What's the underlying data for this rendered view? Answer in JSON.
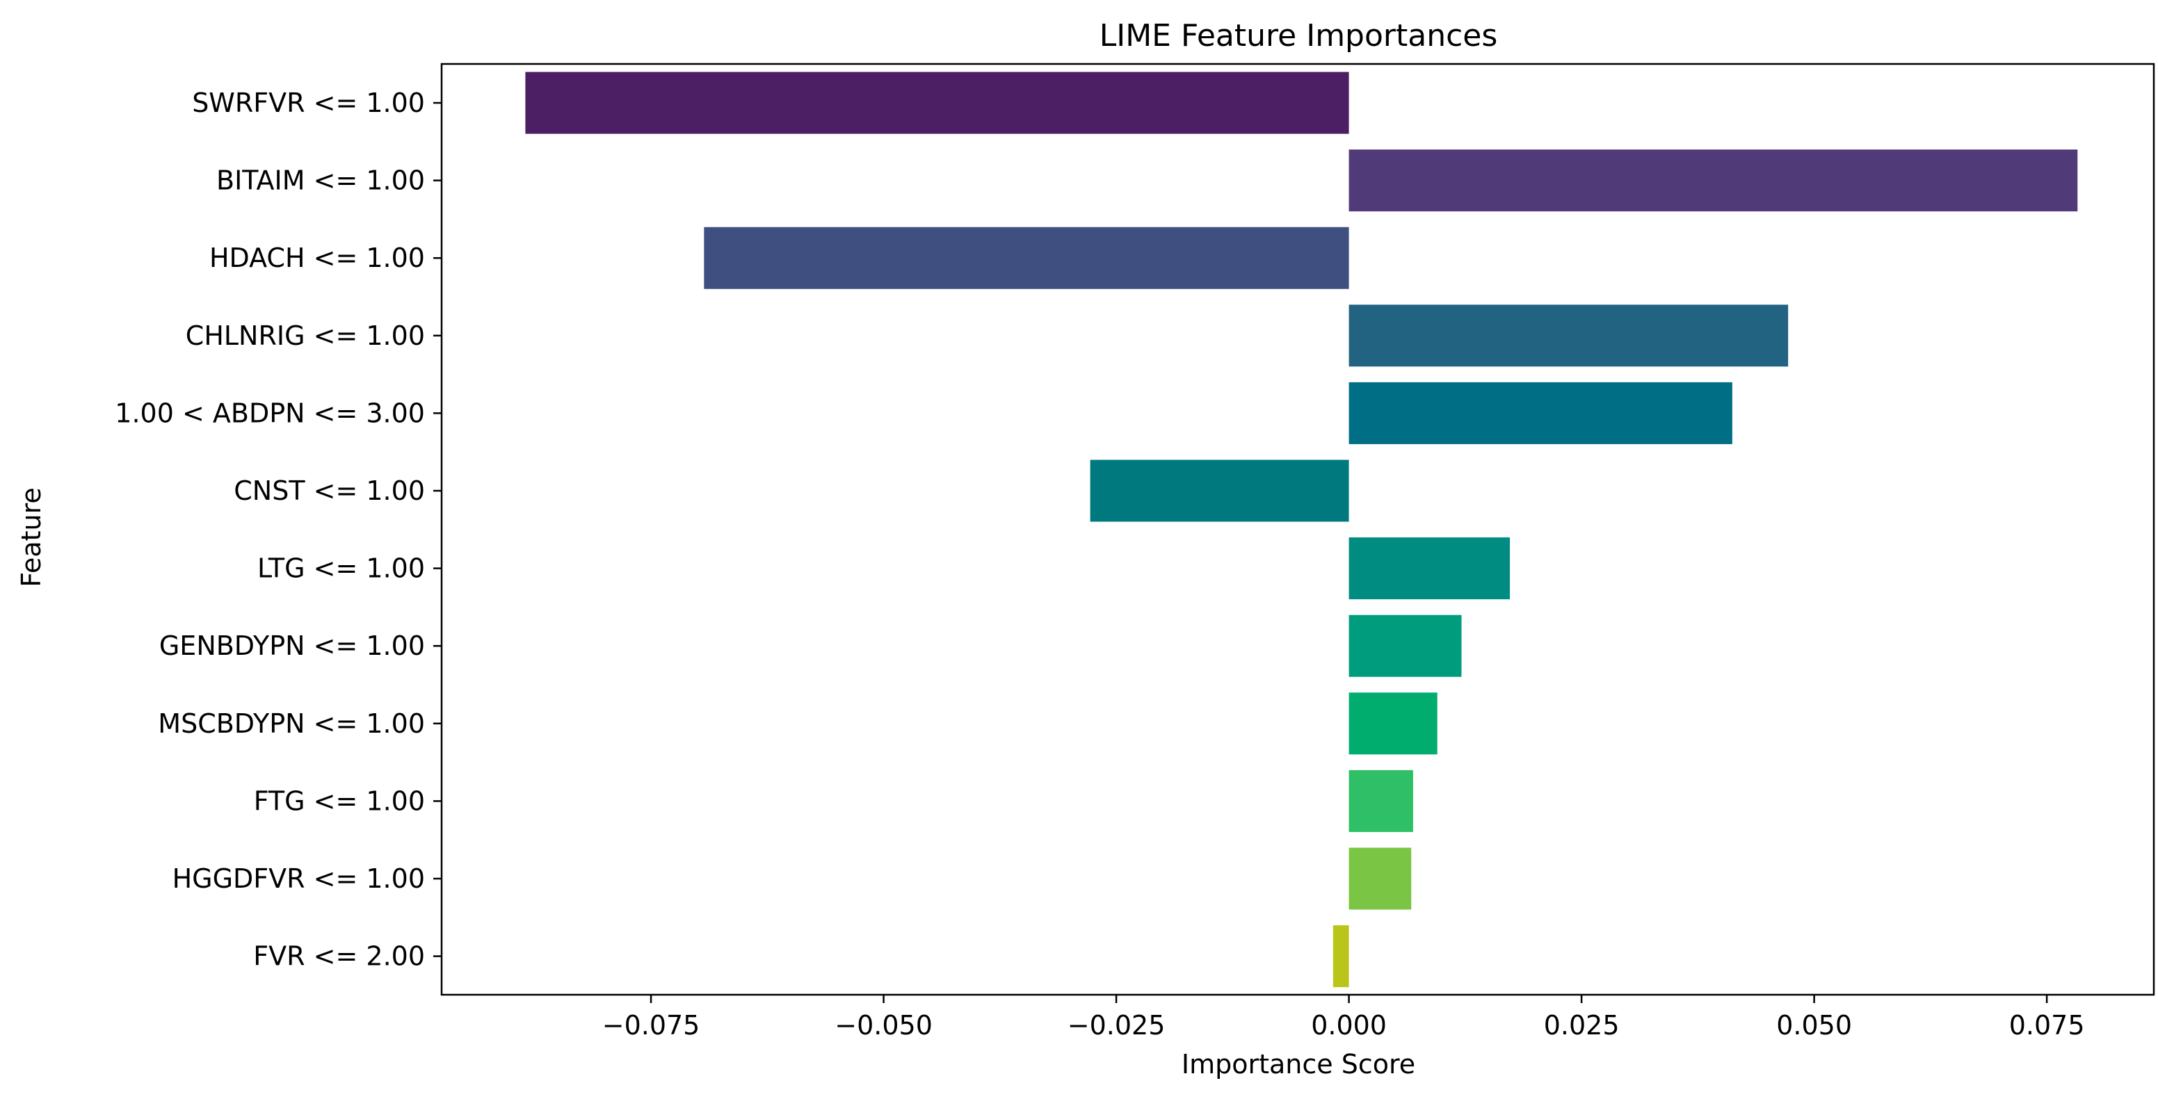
{
  "chart_data": {
    "type": "bar",
    "orientation": "horizontal",
    "title": "LIME Feature Importances",
    "xlabel": "Importance Score",
    "ylabel": "Feature",
    "xlim": [
      -0.0975,
      0.0865
    ],
    "xticks": [
      -0.075,
      -0.05,
      -0.025,
      0.0,
      0.025,
      0.05,
      0.075
    ],
    "xtick_labels": [
      "−0.075",
      "−0.050",
      "−0.025",
      "0.000",
      "0.025",
      "0.050",
      "0.075"
    ],
    "grid": false,
    "legend": "none",
    "categories": [
      "SWRFVR <= 1.00",
      "BITAIM <= 1.00",
      "HDACH <= 1.00",
      "CHLNRIG <= 1.00",
      "1.00 < ABDPN <= 3.00",
      "CNST <= 1.00",
      "LTG <= 1.00",
      "GENBDYPN <= 1.00",
      "MSCBDYPN <= 1.00",
      "FTG <= 1.00",
      "HGGDFVR <= 1.00",
      "FVR <= 2.00"
    ],
    "values": [
      -0.0885,
      0.0783,
      -0.0693,
      0.0472,
      0.0412,
      -0.0278,
      0.0173,
      0.0121,
      0.0095,
      0.0069,
      0.0067,
      -0.0017
    ],
    "colors": [
      "#4c1e63",
      "#503a78",
      "#3e4f80",
      "#226382",
      "#006e85",
      "#00797e",
      "#008c80",
      "#009c7e",
      "#00ad6e",
      "#2fbf66",
      "#7ac543",
      "#b9c519"
    ]
  }
}
